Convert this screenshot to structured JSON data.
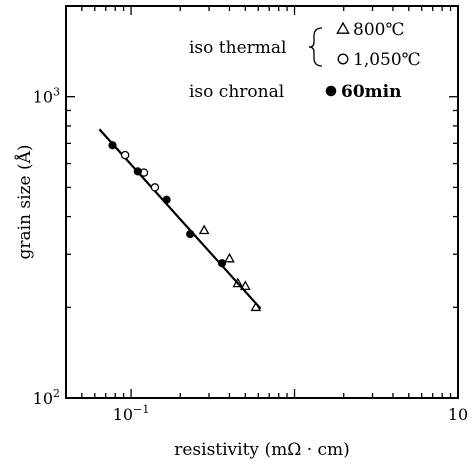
{
  "chart_data": {
    "type": "scatter",
    "xscale": "log",
    "yscale": "log",
    "xlim": [
      0.04,
      10
    ],
    "ylim": [
      100,
      2000
    ],
    "xlabel": "resistivity (mΩ · cm)",
    "ylabel": "grain size (Å)",
    "x_ticks": [
      {
        "value": 0.1,
        "base": "10",
        "exp": "−1"
      },
      {
        "value": 10,
        "label": "10"
      }
    ],
    "y_ticks": [
      {
        "value": 100,
        "base": "10",
        "exp": "2"
      },
      {
        "value": 1000,
        "base": "10",
        "exp": "3"
      }
    ],
    "legend": {
      "group1_label": "iso thermal",
      "group2_label": "iso chronal",
      "entries": [
        {
          "marker": "triangle",
          "label": "800℃"
        },
        {
          "marker": "circle-open",
          "label": "1,050℃"
        },
        {
          "marker": "circle-filled",
          "label": "60min"
        }
      ]
    },
    "series": [
      {
        "marker": "triangle",
        "x": [
          0.28,
          0.4,
          0.45,
          0.5,
          0.58
        ],
        "y": [
          360,
          290,
          240,
          235,
          200
        ]
      },
      {
        "marker": "circle-open",
        "x": [
          0.092,
          0.12,
          0.14
        ],
        "y": [
          640,
          560,
          500
        ]
      },
      {
        "marker": "circle-filled",
        "x": [
          0.077,
          0.11,
          0.165,
          0.23,
          0.36
        ],
        "y": [
          690,
          565,
          455,
          350,
          280
        ]
      }
    ],
    "fit_line": {
      "x": [
        0.064,
        0.62
      ],
      "y": [
        780,
        198
      ]
    }
  }
}
